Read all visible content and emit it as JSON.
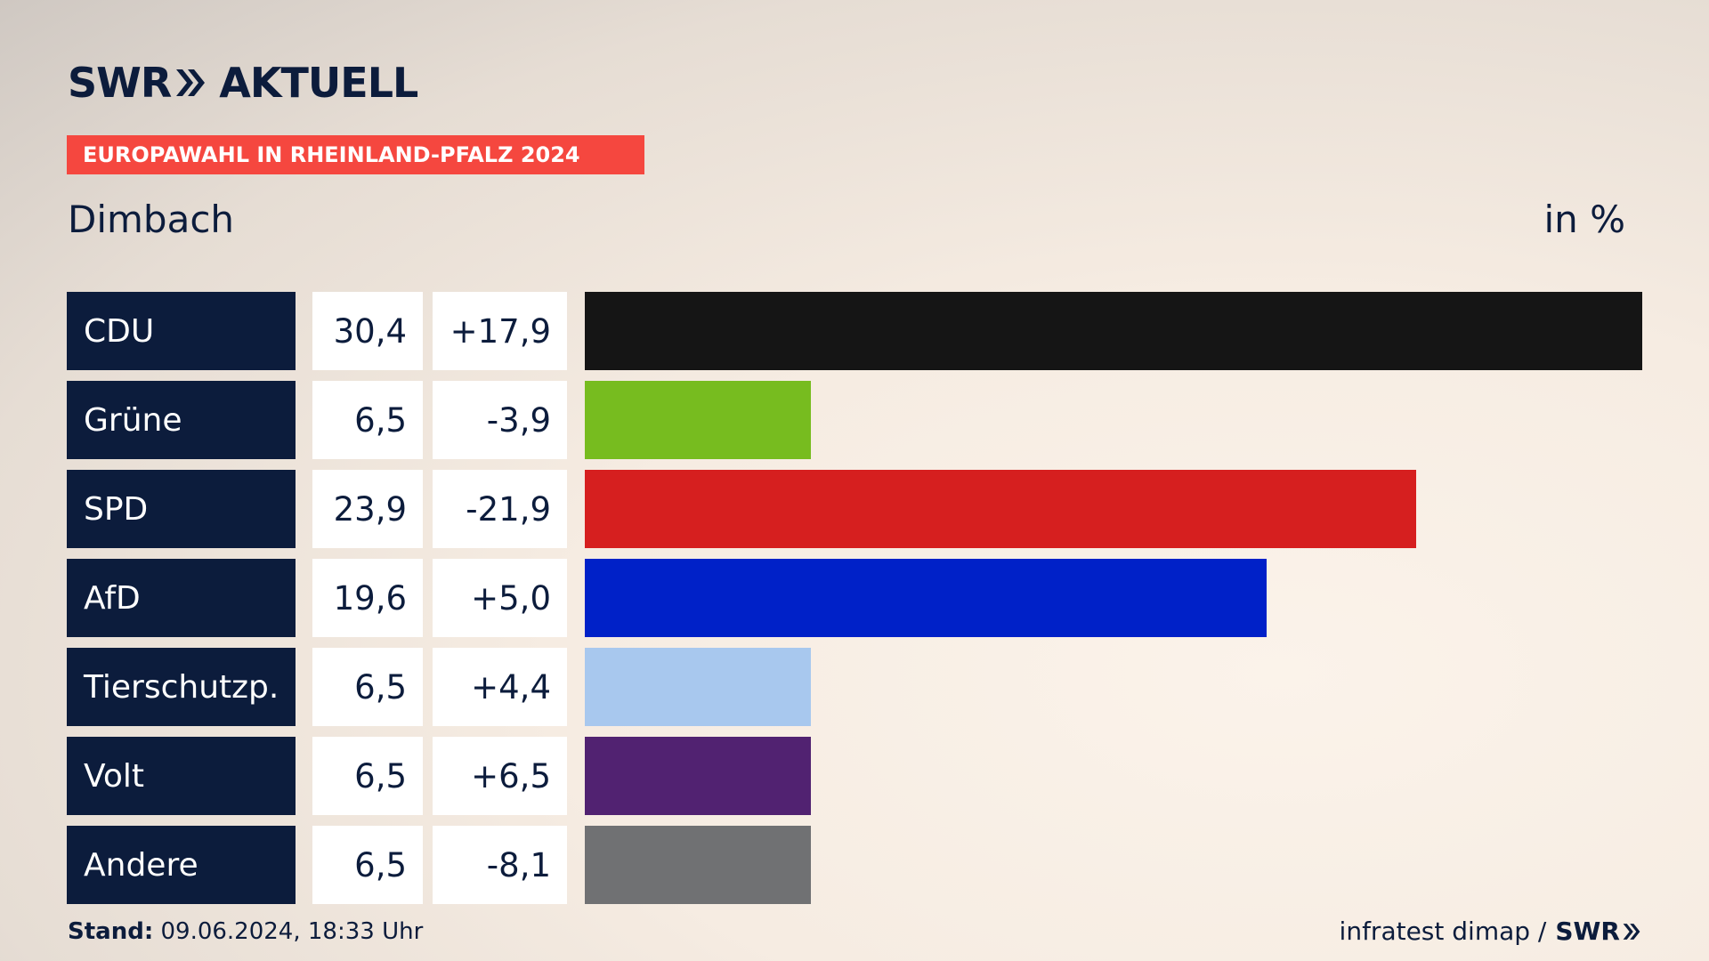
{
  "brand": {
    "swr": "SWR",
    "aktuell": "AKTUELL"
  },
  "badge": "EUROPAWAHL IN RHEINLAND-PFALZ 2024",
  "place": "Dimbach",
  "unit": "in %",
  "chart_data": {
    "type": "bar",
    "categories": [
      "CDU",
      "Grüne",
      "SPD",
      "AfD",
      "Tierschutzp.",
      "Volt",
      "Andere"
    ],
    "values": [
      30.4,
      6.5,
      23.9,
      19.6,
      6.5,
      6.5,
      6.5
    ],
    "value_labels": [
      "30,4",
      "6,5",
      "23,9",
      "19,6",
      "6,5",
      "6,5",
      "6,5"
    ],
    "diff_labels": [
      "+17,9",
      "-3,9",
      "-21,9",
      "+5,0",
      "+4,4",
      "+6,5",
      "-8,1"
    ],
    "colors": [
      "#151515",
      "#77bc1f",
      "#d61f1f",
      "#0021c8",
      "#a8c8ee",
      "#512271",
      "#707173"
    ],
    "xlim": [
      0,
      30.4
    ]
  },
  "footer": {
    "stand_label": "Stand:",
    "stand_value": "09.06.2024, 18:33 Uhr",
    "source": "infratest dimap /",
    "source_brand": "SWR"
  }
}
